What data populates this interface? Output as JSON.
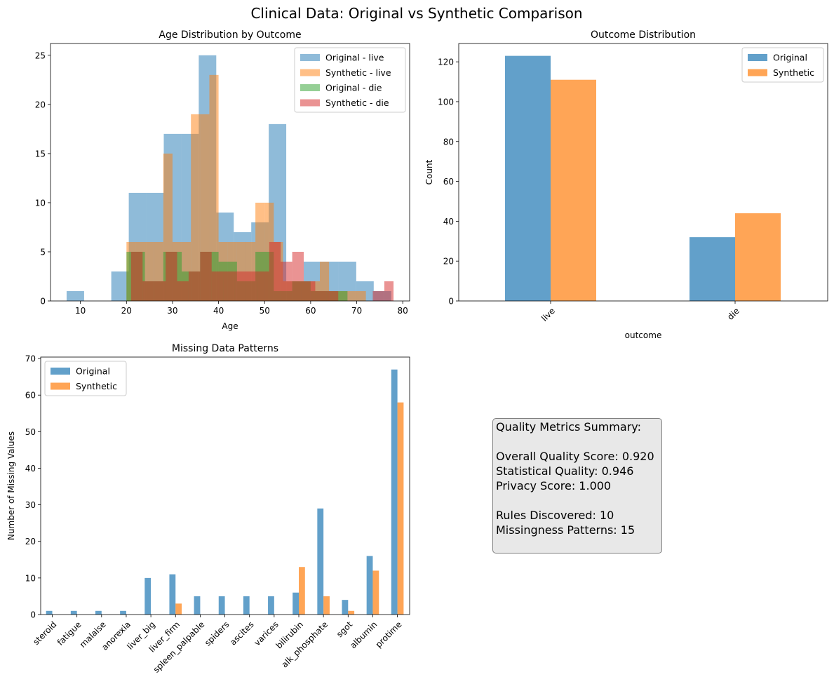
{
  "figure_title": "Clinical Data: Original vs Synthetic Comparison",
  "colors": {
    "blue": "#1f77b4",
    "orange": "#ff7f0e",
    "green": "#2ca02c",
    "red": "#d62728",
    "box_bg": "#e8e8e8",
    "box_border": "#808080"
  },
  "chart_data": [
    {
      "id": "age",
      "type": "histogram",
      "title": "Age Distribution by Outcome",
      "xlabel": "Age",
      "ylabel": "",
      "xlim": [
        3.5,
        81.5
      ],
      "ylim": [
        0,
        26.2
      ],
      "xticks": [
        10,
        20,
        30,
        40,
        50,
        60,
        70,
        80
      ],
      "yticks": [
        0,
        5,
        10,
        15,
        20,
        25
      ],
      "legend_position": "top-right",
      "series": [
        {
          "name": "Original - live",
          "color": "#1f77b4",
          "alpha": 0.5,
          "bins": [
            [
              7,
              10.8,
              1
            ],
            [
              10.8,
              14.6,
              0
            ],
            [
              14.6,
              18.4,
              0
            ],
            [
              16.7,
              20.5,
              3
            ],
            [
              20.5,
              24.3,
              11
            ],
            [
              24.3,
              28.1,
              11
            ],
            [
              28.1,
              31.9,
              17
            ],
            [
              31.9,
              35.7,
              17
            ],
            [
              35.7,
              39.5,
              25
            ],
            [
              39.5,
              43.3,
              9
            ],
            [
              43.3,
              47.1,
              7
            ],
            [
              47.1,
              50.9,
              8
            ],
            [
              50.9,
              54.7,
              18
            ],
            [
              54.7,
              58.5,
              2
            ],
            [
              58.5,
              62.3,
              4
            ],
            [
              62.3,
              66.1,
              4
            ],
            [
              66.1,
              69.9,
              4
            ],
            [
              69.9,
              73.7,
              2
            ],
            [
              73.7,
              77.5,
              1
            ]
          ]
        },
        {
          "name": "Synthetic - live",
          "color": "#ff7f0e",
          "alpha": 0.5,
          "bins": [
            [
              20,
              22,
              6
            ],
            [
              22,
              24,
              6
            ],
            [
              24,
              26,
              6
            ],
            [
              26,
              28,
              6
            ],
            [
              28,
              30,
              15
            ],
            [
              30,
              32,
              6
            ],
            [
              32,
              34,
              6
            ],
            [
              34,
              36,
              19
            ],
            [
              36,
              38,
              19
            ],
            [
              38,
              40,
              23
            ],
            [
              40,
              42,
              6
            ],
            [
              42,
              44,
              6
            ],
            [
              44,
              46,
              6
            ],
            [
              46,
              48,
              6
            ],
            [
              48,
              50,
              10
            ],
            [
              50,
              52,
              10
            ],
            [
              52,
              54,
              6
            ],
            [
              54,
              56,
              2
            ],
            [
              56,
              58,
              2
            ],
            [
              58,
              60,
              2
            ],
            [
              60,
              62,
              2
            ],
            [
              62,
              64,
              4
            ],
            [
              64,
              66,
              1
            ],
            [
              66,
              68,
              1
            ],
            [
              68,
              70,
              1
            ],
            [
              70,
              72,
              1
            ]
          ]
        },
        {
          "name": "Original - die",
          "color": "#2ca02c",
          "alpha": 0.5,
          "bins": [
            [
              20,
              24,
              5
            ],
            [
              24,
              28,
              2
            ],
            [
              28,
              32,
              5
            ],
            [
              32,
              36,
              3
            ],
            [
              36,
              40,
              5
            ],
            [
              40,
              44,
              4
            ],
            [
              44,
              48,
              2
            ],
            [
              48,
              52,
              5
            ],
            [
              52,
              56,
              1
            ],
            [
              56,
              60,
              2
            ],
            [
              60,
              64,
              1
            ],
            [
              64,
              68,
              1
            ],
            [
              68,
              72,
              0
            ],
            [
              72,
              76,
              0
            ],
            [
              76,
              78,
              0
            ]
          ]
        },
        {
          "name": "Synthetic - die",
          "color": "#d62728",
          "alpha": 0.5,
          "bins": [
            [
              21,
              23.5,
              5
            ],
            [
              23.5,
              26,
              2
            ],
            [
              26,
              28.5,
              2
            ],
            [
              28.5,
              31,
              5
            ],
            [
              31,
              33.5,
              2
            ],
            [
              33.5,
              36,
              3
            ],
            [
              36,
              38.5,
              5
            ],
            [
              38.5,
              41,
              3
            ],
            [
              41,
              43.5,
              3
            ],
            [
              43.5,
              46,
              3
            ],
            [
              46,
              48.5,
              3
            ],
            [
              48.5,
              51,
              3
            ],
            [
              51,
              53.5,
              6
            ],
            [
              53.5,
              56,
              4
            ],
            [
              56,
              58.5,
              5
            ],
            [
              58.5,
              61,
              2
            ],
            [
              61,
              63.5,
              1
            ],
            [
              63.5,
              66,
              1
            ],
            [
              66,
              68.5,
              0
            ],
            [
              68.5,
              71,
              0
            ],
            [
              71,
              73.5,
              0
            ],
            [
              73.5,
              76,
              1
            ],
            [
              76,
              78,
              2
            ]
          ]
        }
      ]
    },
    {
      "id": "outcome",
      "type": "bar",
      "title": "Outcome Distribution",
      "xlabel": "outcome",
      "ylabel": "Count",
      "ylim": [
        0,
        129.2
      ],
      "yticks": [
        0,
        20,
        40,
        60,
        80,
        100,
        120
      ],
      "categories": [
        "live",
        "die"
      ],
      "legend_position": "top-right",
      "series": [
        {
          "name": "Original",
          "color": "#1f77b4",
          "values": [
            123,
            32
          ]
        },
        {
          "name": "Synthetic",
          "color": "#ff7f0e",
          "values": [
            111,
            44
          ]
        }
      ]
    },
    {
      "id": "missing",
      "type": "bar",
      "title": "Missing Data Patterns",
      "xlabel": "",
      "ylabel": "Number of Missing Values",
      "ylim": [
        0,
        70.4
      ],
      "yticks": [
        0,
        10,
        20,
        30,
        40,
        50,
        60,
        70
      ],
      "categories": [
        "steroid",
        "fatigue",
        "malaise",
        "anorexia",
        "liver_big",
        "liver_firm",
        "spleen_palpable",
        "spiders",
        "ascites",
        "varices",
        "bilirubin",
        "alk_phosphate",
        "sgot",
        "albumin",
        "protime"
      ],
      "legend_position": "top-left",
      "series": [
        {
          "name": "Original",
          "color": "#1f77b4",
          "values": [
            1,
            1,
            1,
            1,
            10,
            11,
            5,
            5,
            5,
            5,
            6,
            29,
            4,
            16,
            67
          ]
        },
        {
          "name": "Synthetic",
          "color": "#ff7f0e",
          "values": [
            0,
            0,
            0,
            0,
            0,
            3,
            0,
            0,
            0,
            0,
            13,
            5,
            1,
            12,
            58
          ]
        }
      ]
    }
  ],
  "summary": {
    "text": "Quality Metrics Summary:\n\nOverall Quality Score: 0.920\nStatistical Quality: 0.946\nPrivacy Score: 1.000\n\nRules Discovered: 10\nMissingness Patterns: 15"
  }
}
